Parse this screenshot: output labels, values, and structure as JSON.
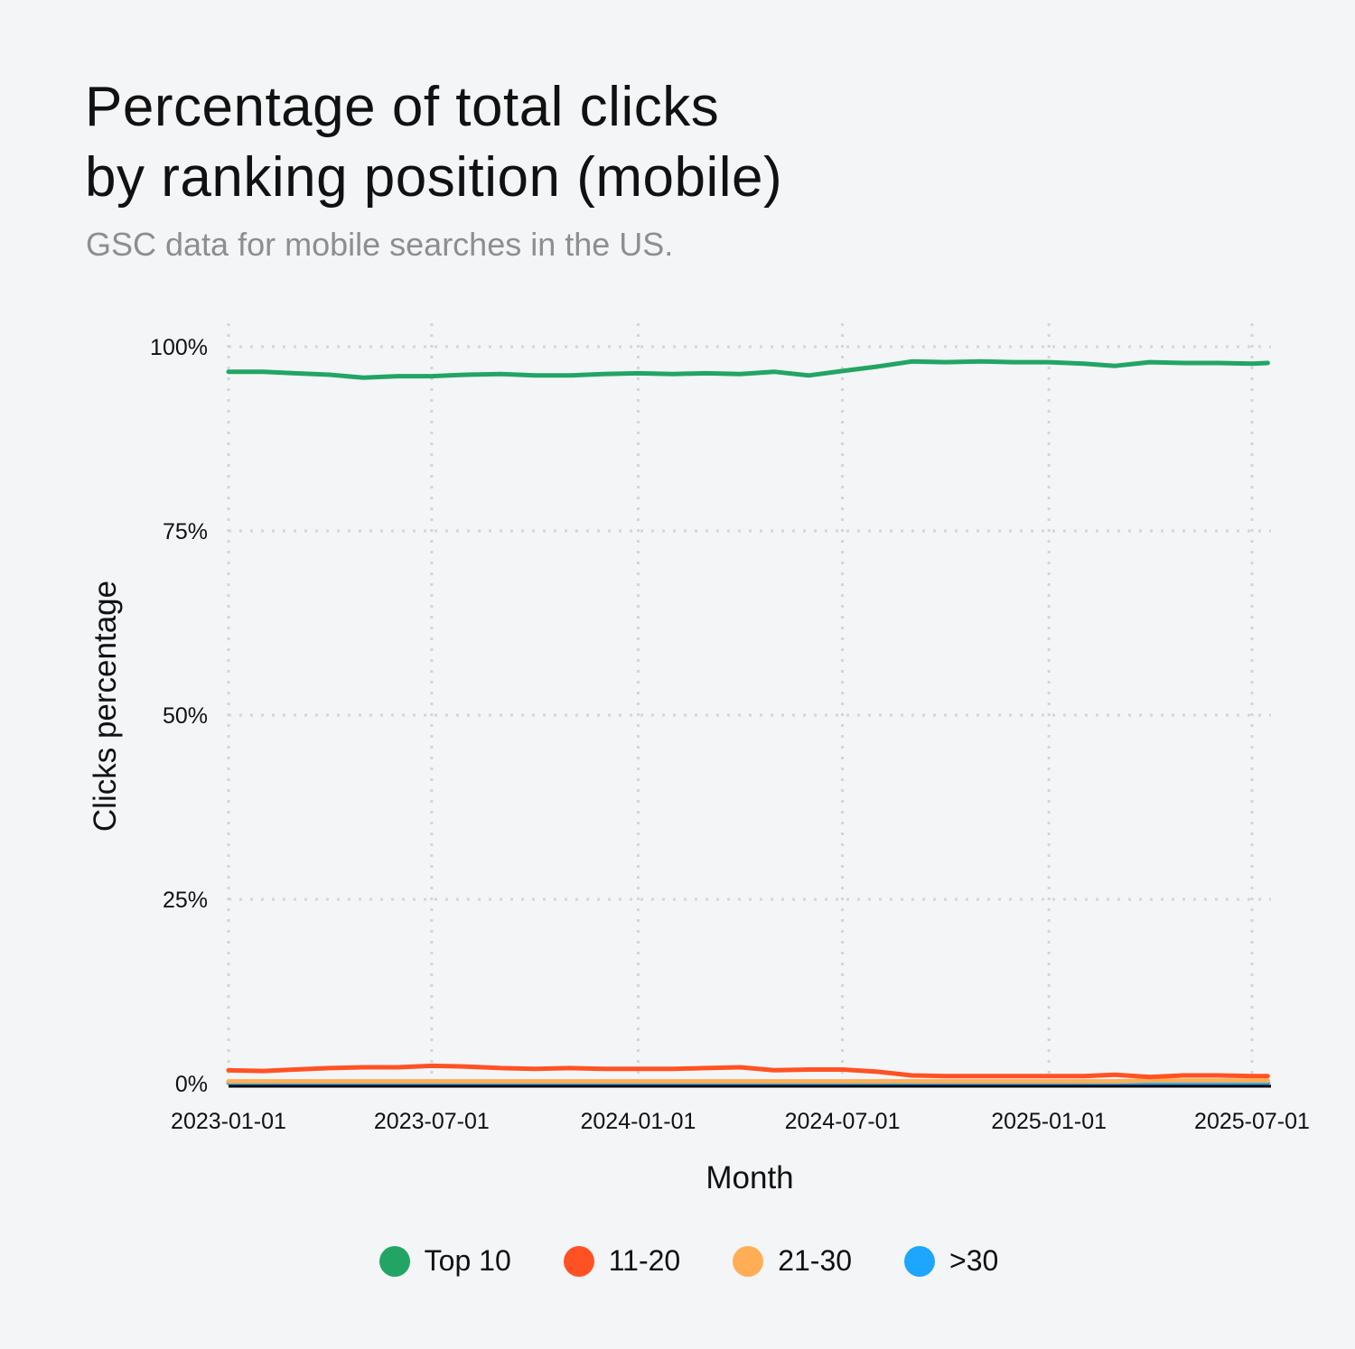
{
  "title_line1": "Percentage of total clicks",
  "title_line2": "by ranking position (mobile)",
  "subtitle": "GSC data for mobile searches in the US.",
  "chart_data": {
    "type": "line",
    "xlabel": "Month",
    "ylabel": "Clicks percentage",
    "ylim": [
      0,
      100
    ],
    "y_ticks": [
      "0%",
      "25%",
      "50%",
      "75%",
      "100%"
    ],
    "y_tick_values": [
      0,
      25,
      50,
      75,
      100
    ],
    "x_ticks": [
      "2023-01-01",
      "2023-07-01",
      "2024-01-01",
      "2024-07-01",
      "2025-01-01",
      "2025-07-01"
    ],
    "grid": true,
    "legend_position": "bottom",
    "x": [
      "2023-01-01",
      "2023-02-01",
      "2023-03-01",
      "2023-04-01",
      "2023-05-01",
      "2023-06-01",
      "2023-07-01",
      "2023-08-01",
      "2023-09-01",
      "2023-10-01",
      "2023-11-01",
      "2023-12-01",
      "2024-01-01",
      "2024-02-01",
      "2024-03-01",
      "2024-04-01",
      "2024-05-01",
      "2024-06-01",
      "2024-07-01",
      "2024-08-01",
      "2024-09-01",
      "2024-10-01",
      "2024-11-01",
      "2024-12-01",
      "2025-01-01",
      "2025-02-01",
      "2025-03-01",
      "2025-04-01",
      "2025-05-01",
      "2025-06-01",
      "2025-07-01",
      "2025-07-15"
    ],
    "series": [
      {
        "name": "Top 10",
        "color": "#22a564",
        "values": [
          96.6,
          96.6,
          96.4,
          96.2,
          95.8,
          96.0,
          96.0,
          96.2,
          96.3,
          96.1,
          96.1,
          96.3,
          96.4,
          96.3,
          96.4,
          96.3,
          96.6,
          96.1,
          96.7,
          97.3,
          98.0,
          97.9,
          98.0,
          97.9,
          97.9,
          97.7,
          97.4,
          97.9,
          97.8,
          97.8,
          97.7,
          97.8
        ]
      },
      {
        "name": "11-20",
        "color": "#ff5224",
        "values": [
          1.8,
          1.7,
          1.9,
          2.1,
          2.2,
          2.2,
          2.4,
          2.3,
          2.1,
          2.0,
          2.1,
          2.0,
          2.0,
          2.0,
          2.1,
          2.2,
          1.8,
          1.9,
          1.9,
          1.6,
          1.1,
          1.0,
          1.0,
          1.0,
          1.0,
          1.0,
          1.2,
          0.9,
          1.1,
          1.1,
          1.0,
          1.0
        ]
      },
      {
        "name": "21-30",
        "color": "#ffae55",
        "values": [
          0.3,
          0.3,
          0.3,
          0.3,
          0.3,
          0.3,
          0.3,
          0.3,
          0.3,
          0.3,
          0.3,
          0.3,
          0.3,
          0.3,
          0.3,
          0.3,
          0.3,
          0.3,
          0.3,
          0.3,
          0.3,
          0.3,
          0.3,
          0.3,
          0.3,
          0.3,
          0.3,
          0.4,
          0.4,
          0.4,
          0.4,
          0.4
        ]
      },
      {
        "name": ">30",
        "color": "#1ea6ff",
        "values": [
          0.1,
          0.1,
          0.1,
          0.1,
          0.1,
          0.1,
          0.1,
          0.1,
          0.1,
          0.1,
          0.1,
          0.1,
          0.1,
          0.1,
          0.1,
          0.1,
          0.1,
          0.1,
          0.1,
          0.1,
          0.1,
          0.1,
          0.1,
          0.1,
          0.1,
          0.1,
          0.1,
          0.1,
          0.1,
          0.1,
          0.1,
          0.1
        ]
      }
    ]
  }
}
